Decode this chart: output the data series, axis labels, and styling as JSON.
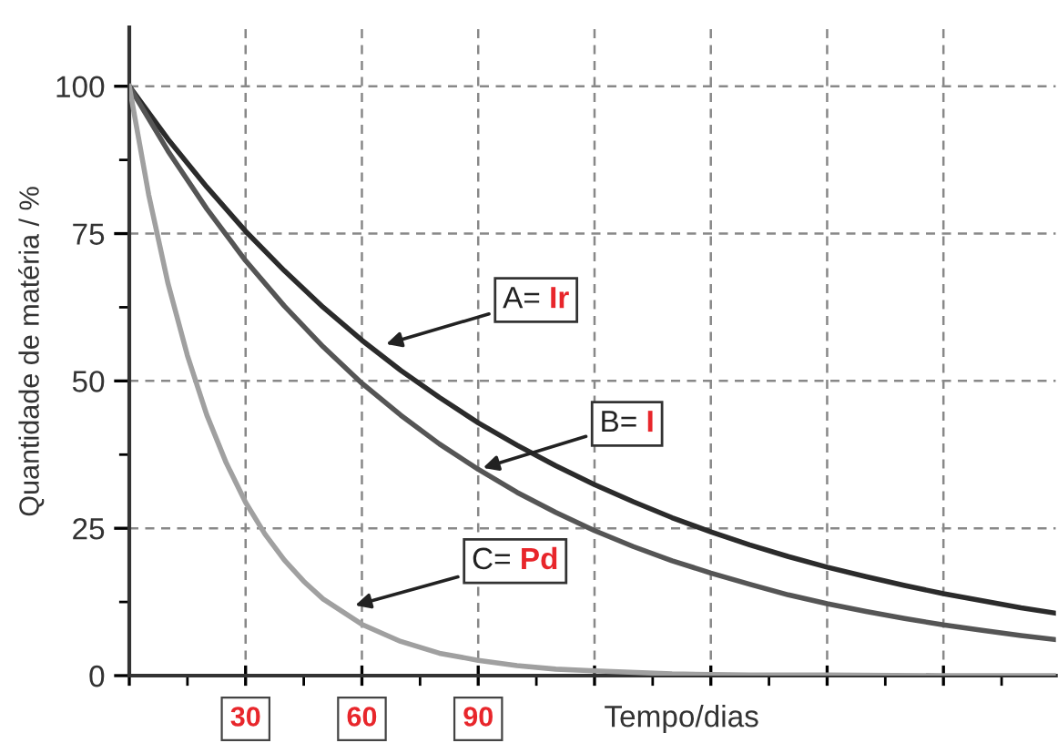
{
  "chart_data": {
    "type": "line",
    "xlabel": "Tempo/dias",
    "ylabel": "Quantidade de matéria / %",
    "xlim": [
      0,
      239
    ],
    "ylim": [
      0,
      110
    ],
    "xticks": [
      {
        "value": 0,
        "label": null
      },
      30,
      60,
      90,
      {
        "value": 120,
        "label": null
      },
      {
        "value": 150,
        "label": null
      },
      {
        "value": 180,
        "label": null
      },
      {
        "value": 210,
        "label": null
      }
    ],
    "yticks": [
      0,
      25,
      50,
      75,
      100
    ],
    "grid": true,
    "marker": "none",
    "line_style": "solid",
    "series": [
      {
        "color": "#2b2b2b",
        "x": [
          0,
          10,
          20,
          30,
          40,
          50,
          60,
          70,
          80,
          90,
          100,
          110,
          120,
          130,
          140,
          150,
          160,
          170,
          180,
          190,
          200,
          210,
          220,
          230,
          239
        ],
        "values": [
          100,
          91.0,
          82.9,
          75.4,
          68.7,
          62.5,
          56.9,
          51.8,
          47.2,
          42.9,
          39.1,
          35.6,
          32.4,
          29.5,
          26.8,
          24.4,
          22.2,
          20.2,
          18.4,
          16.8,
          15.3,
          13.9,
          12.7,
          11.5,
          10.6
        ]
      },
      {
        "color": "#555555",
        "x": [
          0,
          10,
          20,
          30,
          40,
          50,
          60,
          70,
          80,
          90,
          100,
          110,
          120,
          130,
          140,
          150,
          160,
          170,
          180,
          190,
          200,
          210,
          220,
          230,
          239
        ],
        "values": [
          100,
          89.0,
          79.2,
          70.4,
          62.7,
          55.8,
          49.6,
          44.2,
          39.3,
          35.0,
          31.1,
          27.7,
          24.6,
          21.9,
          19.5,
          17.4,
          15.5,
          13.7,
          12.2,
          10.9,
          9.7,
          8.6,
          7.7,
          6.8,
          6.1
        ]
      },
      {
        "color": "#a0a0a0",
        "x": [
          0,
          5,
          10,
          15,
          20,
          25,
          30,
          35,
          40,
          45,
          50,
          60,
          70,
          80,
          90,
          100,
          110,
          120,
          140,
          160,
          180,
          210,
          239
        ],
        "values": [
          100,
          81.6,
          66.5,
          54.3,
          44.2,
          36.1,
          29.4,
          24.0,
          19.6,
          16.0,
          13.0,
          8.7,
          5.8,
          3.8,
          2.6,
          1.7,
          1.1,
          0.8,
          0.3,
          0.1,
          0.1,
          0.0,
          0.0
        ]
      }
    ],
    "annotations": [
      {
        "text": "A= Ir",
        "x": 65,
        "y": 56
      },
      {
        "text": "B= I",
        "x": 90,
        "y": 35.0
      },
      {
        "text": "C= Pd",
        "x": 57,
        "y": 11.7
      }
    ]
  }
}
